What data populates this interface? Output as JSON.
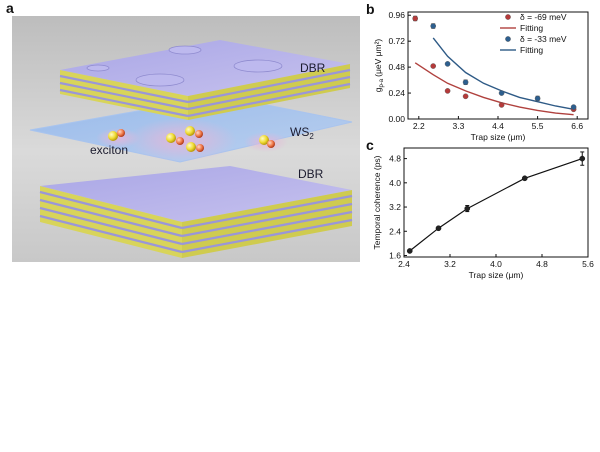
{
  "panels": {
    "a": "a",
    "b": "b",
    "c": "c"
  },
  "scene": {
    "top_mirror_label": "DBR",
    "layer_label_main": "WS",
    "layer_label_sub": "2",
    "particle_label": "exciton",
    "bottom_mirror_label": "DBR"
  },
  "colors": {
    "series_red": "#b53a3a",
    "series_blue": "#2d5f8f",
    "fit_red": "#b0413e",
    "fit_blue": "#2e5a86",
    "coherence_line": "#111111"
  },
  "chart_data": [
    {
      "panel": "b",
      "type": "scatter",
      "xlabel": "Trap size (μm)",
      "ylabel_main": "g",
      "ylabel_sub": "p-a",
      "ylabel_unit": "(μeV μm²)",
      "xticks": [
        "2.2",
        "3.3",
        "4.4",
        "5.5",
        "6.6"
      ],
      "yticks": [
        "0.00",
        "0.24",
        "0.48",
        "0.72",
        "0.96"
      ],
      "xlim": [
        1.9,
        6.9
      ],
      "ylim": [
        0,
        0.99
      ],
      "legend_position": "top-right",
      "grid": false,
      "series": [
        {
          "name": "δ = -69 meV",
          "x": [
            2.1,
            2.6,
            3.0,
            3.5,
            4.5,
            6.5
          ],
          "y": [
            0.93,
            0.49,
            0.26,
            0.21,
            0.13,
            0.09
          ],
          "error": [
            0.02,
            0.0,
            0.0,
            0.0,
            0.0,
            0.0
          ]
        },
        {
          "name": "δ = -33 meV",
          "x": [
            2.6,
            3.0,
            3.5,
            4.5,
            5.5,
            6.5
          ],
          "y": [
            0.86,
            0.51,
            0.34,
            0.24,
            0.19,
            0.11
          ],
          "error": [
            0.02,
            0.0,
            0.02,
            0.0,
            0.02,
            0.0
          ]
        }
      ],
      "fits": [
        {
          "name": "Fitting",
          "x": [
            2.1,
            2.6,
            3.0,
            3.5,
            4.0,
            4.5,
            5.0,
            5.5,
            6.0,
            6.5
          ],
          "y": [
            0.52,
            0.41,
            0.33,
            0.26,
            0.2,
            0.15,
            0.11,
            0.08,
            0.055,
            0.04
          ]
        },
        {
          "name": "Fitting",
          "x": [
            2.6,
            3.0,
            3.5,
            4.0,
            4.5,
            5.0,
            5.5,
            6.0,
            6.5
          ],
          "y": [
            0.75,
            0.58,
            0.43,
            0.33,
            0.26,
            0.2,
            0.16,
            0.12,
            0.09
          ]
        }
      ]
    },
    {
      "panel": "c",
      "type": "line",
      "xlabel": "Trap size (μm)",
      "ylabel": "Temporal coherence (ps)",
      "xticks": [
        "2.4",
        "3.2",
        "4.0",
        "4.8",
        "5.6"
      ],
      "yticks": [
        "1.6",
        "2.4",
        "3.2",
        "4.0",
        "4.8"
      ],
      "xlim": [
        2.4,
        5.6
      ],
      "ylim": [
        1.55,
        5.15
      ],
      "grid": false,
      "series": [
        {
          "name": "",
          "x": [
            2.5,
            3.0,
            3.5,
            4.5,
            5.5
          ],
          "y": [
            1.75,
            2.5,
            3.15,
            4.15,
            4.8
          ],
          "error": [
            0.0,
            0.0,
            0.1,
            0.0,
            0.22
          ]
        }
      ]
    }
  ]
}
